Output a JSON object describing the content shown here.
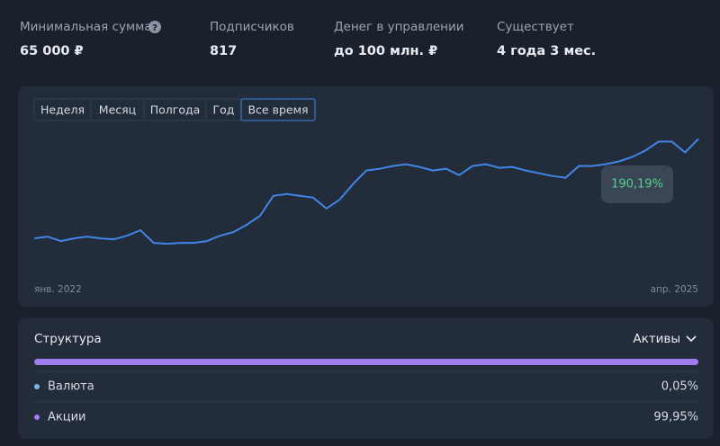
{
  "stats": [
    {
      "label": "Минимальная сумма",
      "value": "65 000 ₽"
    },
    {
      "label": "Подписчиков",
      "value": "817"
    },
    {
      "label": "Денег в управлении",
      "value": "до 100 млн. ₽"
    },
    {
      "label": "Существует",
      "value": "4 года 3 мес."
    }
  ],
  "tabs": [
    "Неделя",
    "Месяц",
    "Полгода",
    "Год",
    "Все время"
  ],
  "chart": {
    "type": "line",
    "color": "#3f86e6",
    "values": [
      0,
      3.5,
      -5.2,
      0,
      3.5,
      0,
      -1.7,
      5.2,
      15.6,
      -8.6,
      -10.4,
      -8.6,
      -8.6,
      -5.2,
      5.2,
      12.1,
      25.9,
      43.2,
      81.3,
      84.7,
      81.3,
      77.8,
      57.1,
      74.3,
      103.7,
      129.7,
      133.1,
      138.3,
      141.8,
      136.6,
      129.7,
      133.1,
      121.0,
      138.3,
      141.8,
      134.9,
      136.6,
      129.7,
      124.5,
      119.3,
      115.8,
      138.3,
      138.3,
      141.8,
      147.0,
      155.6,
      167.7,
      185.0,
      185.0,
      164.3,
      190.19
    ],
    "value_labels": [
      null,
      null,
      null,
      null,
      null,
      null,
      null,
      null,
      null,
      null,
      null,
      null,
      null,
      null,
      null,
      null,
      null,
      null,
      null,
      null,
      null,
      null,
      null,
      null,
      null,
      null,
      null,
      null,
      null,
      null,
      null,
      null,
      null,
      null,
      null,
      null,
      null,
      null,
      null,
      null,
      null,
      null,
      null,
      null,
      null,
      null,
      null,
      null,
      null,
      null,
      "190,19%"
    ],
    "ylim": [
      -60,
      215
    ],
    "x_labels": [
      "янв. 2022",
      "апр. 2025"
    ]
  },
  "structure": {
    "title": "Структура",
    "selector": "Активы",
    "rows": [
      {
        "label": "Валюта",
        "value": "0,05%",
        "color": "#7fb3e8"
      },
      {
        "label": "Акции",
        "value": "99,95%",
        "color": "#a07cf0"
      }
    ]
  }
}
